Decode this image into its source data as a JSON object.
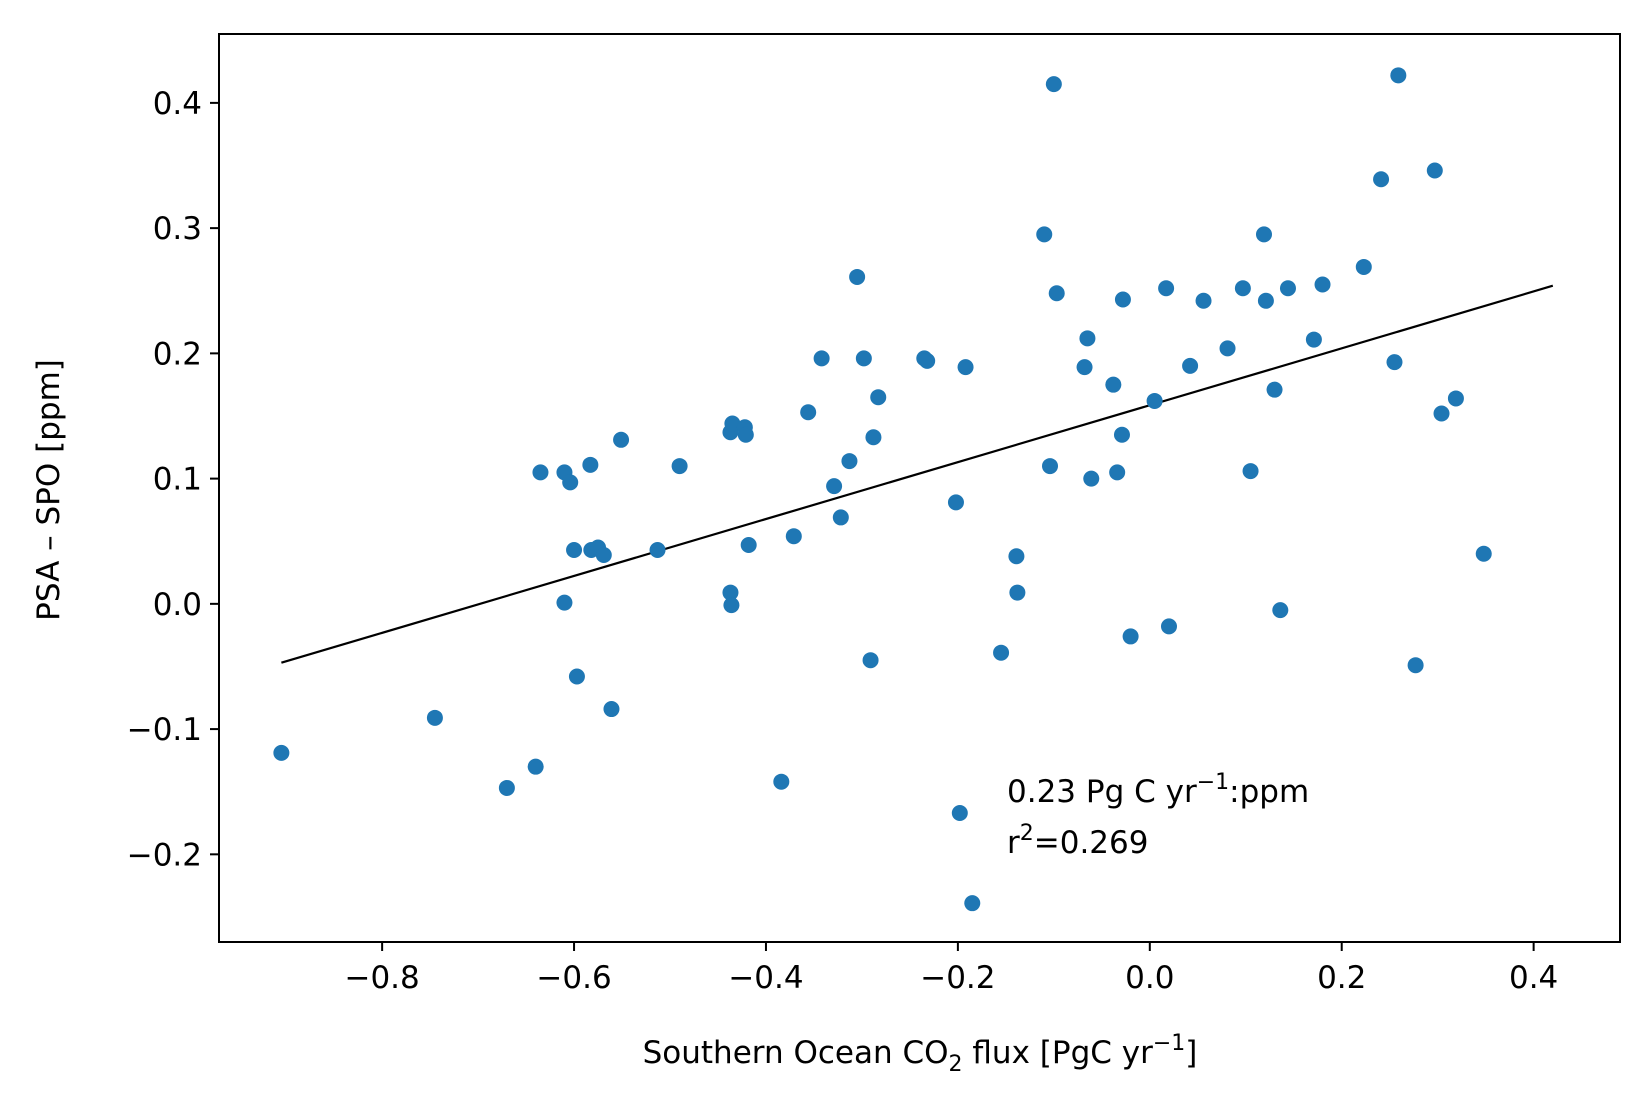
{
  "chart_data": {
    "type": "scatter",
    "title": "",
    "xlabel": {
      "main": "Southern Ocean CO",
      "sub": "2",
      "after": " flux [PgC yr",
      "sup": "−1",
      "close": "]"
    },
    "ylabel": "PSA – SPO [ppm]",
    "xlim": [
      -0.97,
      0.49
    ],
    "ylim": [
      -0.27,
      0.455
    ],
    "xticks": [
      -0.8,
      -0.6,
      -0.4,
      -0.2,
      0.0,
      0.2,
      0.4
    ],
    "xtick_labels": [
      "−0.8",
      "−0.6",
      "−0.4",
      "−0.2",
      "0.0",
      "0.2",
      "0.4"
    ],
    "yticks": [
      -0.2,
      -0.1,
      0.0,
      0.1,
      0.2,
      0.3,
      0.4
    ],
    "ytick_labels": [
      "−0.2",
      "−0.1",
      "0.0",
      "0.1",
      "0.2",
      "0.3",
      "0.4"
    ],
    "grid": false,
    "point_color": "#1f77b4",
    "line_color": "#000000",
    "points": [
      [
        -0.905,
        -0.119
      ],
      [
        -0.745,
        -0.091
      ],
      [
        -0.67,
        -0.147
      ],
      [
        -0.64,
        -0.13
      ],
      [
        -0.635,
        0.105
      ],
      [
        -0.61,
        0.105
      ],
      [
        -0.61,
        0.001
      ],
      [
        -0.604,
        0.097
      ],
      [
        -0.6,
        0.043
      ],
      [
        -0.597,
        -0.058
      ],
      [
        -0.583,
        0.111
      ],
      [
        -0.582,
        0.043
      ],
      [
        -0.575,
        0.045
      ],
      [
        -0.569,
        0.039
      ],
      [
        -0.561,
        -0.084
      ],
      [
        -0.551,
        0.131
      ],
      [
        -0.513,
        0.043
      ],
      [
        -0.49,
        0.11
      ],
      [
        -0.437,
        0.009
      ],
      [
        -0.437,
        0.137
      ],
      [
        -0.436,
        -0.001
      ],
      [
        -0.435,
        0.144
      ],
      [
        -0.422,
        0.141
      ],
      [
        -0.421,
        0.135
      ],
      [
        -0.418,
        0.047
      ],
      [
        -0.384,
        -0.142
      ],
      [
        -0.371,
        0.054
      ],
      [
        -0.356,
        0.153
      ],
      [
        -0.342,
        0.196
      ],
      [
        -0.329,
        0.094
      ],
      [
        -0.322,
        0.069
      ],
      [
        -0.313,
        0.114
      ],
      [
        -0.305,
        0.261
      ],
      [
        -0.298,
        0.196
      ],
      [
        -0.291,
        -0.045
      ],
      [
        -0.288,
        0.133
      ],
      [
        -0.283,
        0.165
      ],
      [
        -0.235,
        0.196
      ],
      [
        -0.232,
        0.194
      ],
      [
        -0.202,
        0.081
      ],
      [
        -0.198,
        -0.167
      ],
      [
        -0.192,
        0.189
      ],
      [
        -0.185,
        -0.239
      ],
      [
        -0.155,
        -0.039
      ],
      [
        -0.139,
        0.038
      ],
      [
        -0.138,
        0.009
      ],
      [
        -0.11,
        0.295
      ],
      [
        -0.104,
        0.11
      ],
      [
        -0.1,
        0.415
      ],
      [
        -0.097,
        0.248
      ],
      [
        -0.068,
        0.189
      ],
      [
        -0.065,
        0.212
      ],
      [
        -0.061,
        0.1
      ],
      [
        -0.038,
        0.175
      ],
      [
        -0.034,
        0.105
      ],
      [
        -0.029,
        0.135
      ],
      [
        -0.028,
        0.243
      ],
      [
        -0.02,
        -0.026
      ],
      [
        0.005,
        0.162
      ],
      [
        0.017,
        0.252
      ],
      [
        0.02,
        -0.018
      ],
      [
        0.042,
        0.19
      ],
      [
        0.056,
        0.242
      ],
      [
        0.081,
        0.204
      ],
      [
        0.097,
        0.252
      ],
      [
        0.105,
        0.106
      ],
      [
        0.119,
        0.295
      ],
      [
        0.121,
        0.242
      ],
      [
        0.13,
        0.171
      ],
      [
        0.136,
        -0.005
      ],
      [
        0.144,
        0.252
      ],
      [
        0.171,
        0.211
      ],
      [
        0.18,
        0.255
      ],
      [
        0.223,
        0.269
      ],
      [
        0.241,
        0.339
      ],
      [
        0.255,
        0.193
      ],
      [
        0.259,
        0.422
      ],
      [
        0.277,
        -0.049
      ],
      [
        0.297,
        0.346
      ],
      [
        0.304,
        0.152
      ],
      [
        0.319,
        0.164
      ],
      [
        0.348,
        0.04
      ]
    ],
    "fit_line": {
      "x": [
        -0.905,
        0.42
      ],
      "y": [
        -0.047,
        0.254
      ]
    },
    "annotation": {
      "line1_pre": "0.23 Pg C yr",
      "line1_sup": "−1",
      "line1_post": ":ppm",
      "line2_pre": "r",
      "line2_sup": "2",
      "line2_post": "=0.269"
    }
  }
}
